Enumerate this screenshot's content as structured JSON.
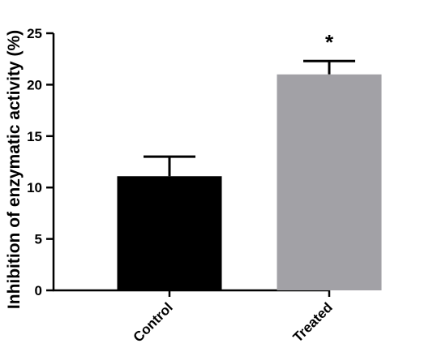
{
  "chart_data": {
    "type": "bar",
    "title": "",
    "xlabel": "",
    "ylabel": "Inhibition of enzymatic activity (%)",
    "categories": [
      "Control",
      "Treated"
    ],
    "values": [
      11.1,
      21.0
    ],
    "errors": [
      1.9,
      1.3
    ],
    "ylim": [
      0,
      25
    ],
    "yticks": [
      0,
      5,
      10,
      15,
      20,
      25
    ],
    "ytick_labels": [
      "0",
      "5",
      "10",
      "15",
      "20",
      "25"
    ],
    "bar_colors": [
      "#000000",
      "#a2a1a6"
    ],
    "grid": false,
    "legend": "none",
    "annotations": [
      {
        "category": "Treated",
        "text": "*"
      }
    ]
  }
}
